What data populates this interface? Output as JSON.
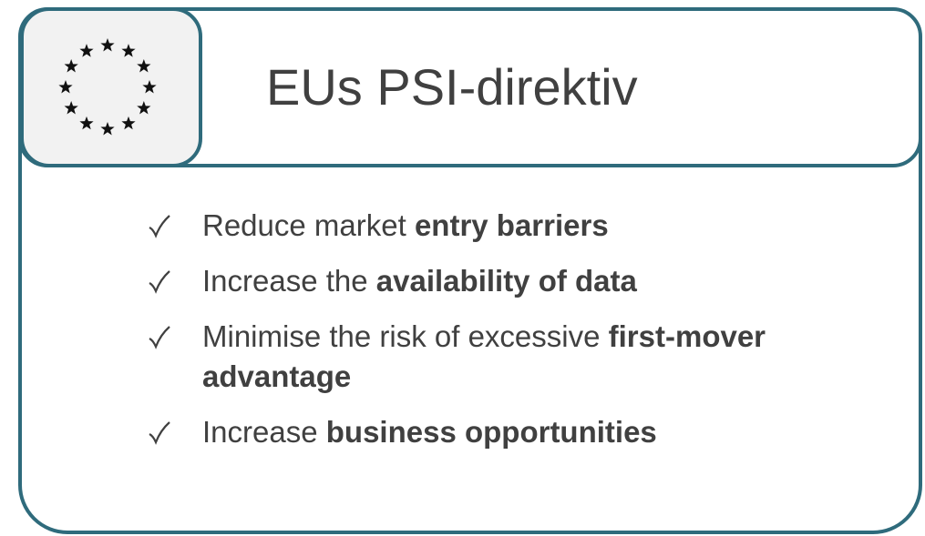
{
  "title": "EUs PSI-direktiv",
  "bullets": [
    {
      "segments": [
        {
          "text": "Reduce market ",
          "bold": false
        },
        {
          "text": "entry barriers",
          "bold": true
        }
      ]
    },
    {
      "segments": [
        {
          "text": "Increase the ",
          "bold": false
        },
        {
          "text": "availability of data",
          "bold": true
        }
      ]
    },
    {
      "segments": [
        {
          "text": "Minimise the risk of excessive ",
          "bold": false
        },
        {
          "text": "first-mover advantage",
          "bold": true
        }
      ]
    },
    {
      "segments": [
        {
          "text": "Increase ",
          "bold": false
        },
        {
          "text": "business opportunities",
          "bold": true
        }
      ]
    }
  ]
}
